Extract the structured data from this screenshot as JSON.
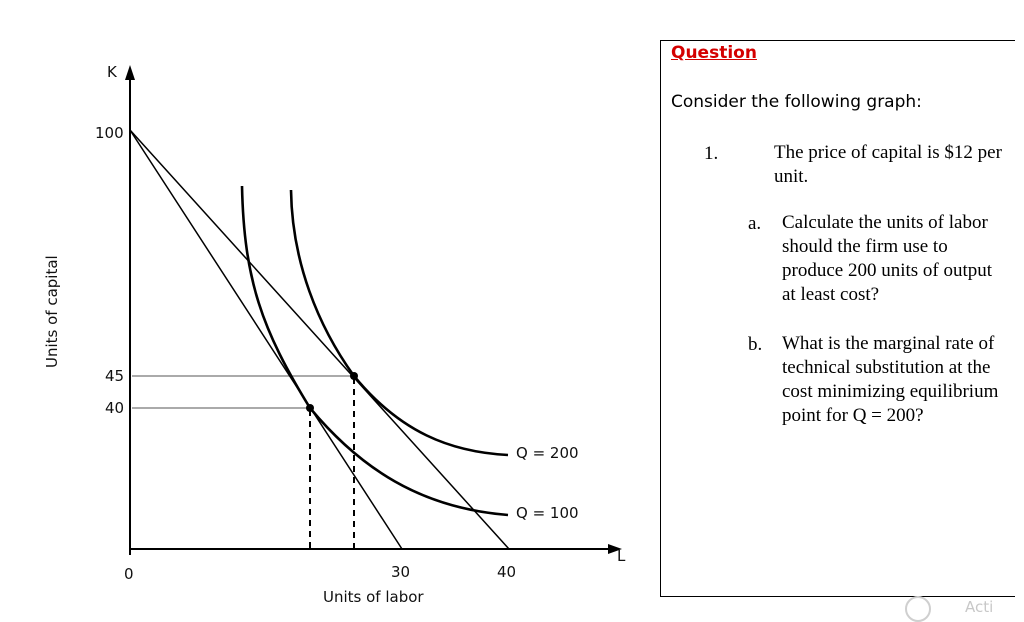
{
  "graph": {
    "y_axis_symbol": "K",
    "x_axis_symbol": "L",
    "y_axis_title": "Units of capital",
    "x_axis_title": "Units of labor",
    "origin_label": "0",
    "y_ticks": [
      "100",
      "45",
      "40"
    ],
    "x_ticks": [
      "30",
      "40"
    ],
    "curve_labels": {
      "q200": "Q = 200",
      "q100": "Q = 100"
    }
  },
  "question": {
    "heading": "Question",
    "intro": "Consider the following graph:",
    "item_number": "1.",
    "item_text": "The price of capital is $12 per unit.",
    "sub_a_label": "a.",
    "sub_a_text": "Calculate the units of labor should the firm use to produce 200 units of output at least cost?",
    "sub_b_label": "b.",
    "sub_b_text": "What is the marginal rate of technical substitution at the cost minimizing equilibrium point for Q = 200?"
  },
  "colors": {
    "heading": "#d40000",
    "axis": "#000000",
    "guide": "#777777"
  },
  "corner_hint": "Acti"
}
